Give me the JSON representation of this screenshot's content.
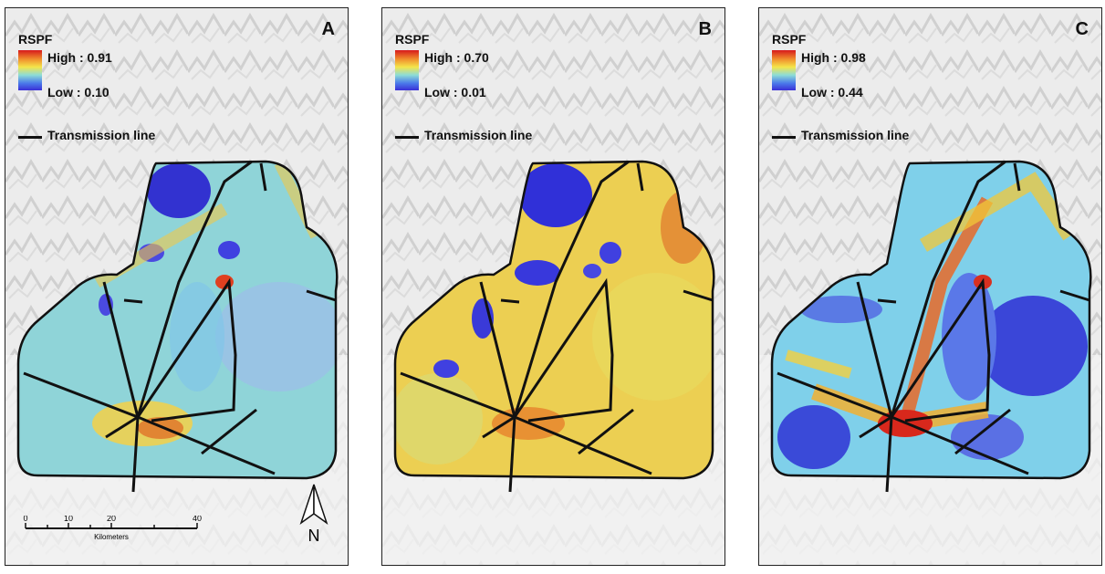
{
  "legend": {
    "title": "RSPF",
    "line_label": "Transmission line"
  },
  "panels": [
    {
      "letter": "A",
      "high": "High : 0.91",
      "low": "Low : 0.10"
    },
    {
      "letter": "B",
      "high": "High : 0.70",
      "low": "Low : 0.01"
    },
    {
      "letter": "C",
      "high": "High : 0.98",
      "low": "Low : 0.44"
    }
  ],
  "scale": {
    "ticks": [
      "0",
      "10",
      "20",
      "40"
    ],
    "unit": "Kilometers"
  },
  "north_label": "N",
  "colors": {
    "high": "#d7191c",
    "mid": "#f4e54a",
    "low": "#3a2fd6",
    "line": "#111111"
  }
}
